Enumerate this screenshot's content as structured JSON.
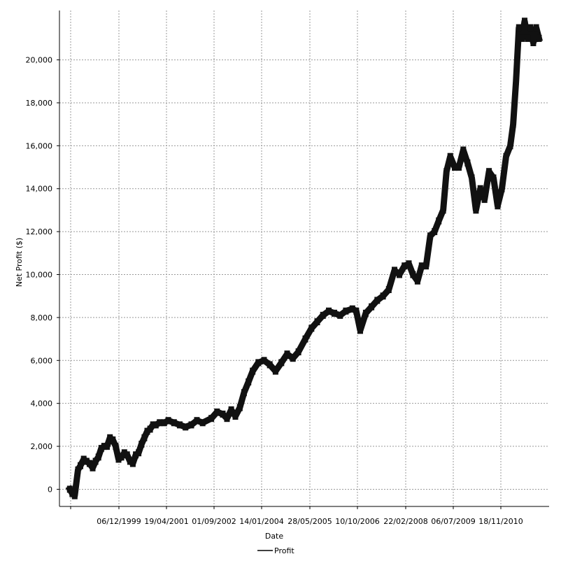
{
  "chart_data": {
    "type": "line",
    "title": "",
    "xlabel": "Date",
    "ylabel": "Net Profit ($)",
    "legend": {
      "placement": "bottom",
      "entries": [
        "Profit"
      ]
    },
    "grid": true,
    "x_tick_labels": [
      "06/12/1999",
      "19/04/2001",
      "01/09/2002",
      "14/01/2004",
      "28/05/2005",
      "10/10/2006",
      "22/02/2008",
      "06/07/2009",
      "18/11/2010"
    ],
    "y_tick_labels": [
      "0",
      "2,000",
      "4,000",
      "6,000",
      "8,000",
      "10,000",
      "12,000",
      "14,000",
      "16,000",
      "18,000",
      "20,000"
    ],
    "y_ticks": [
      0,
      2000,
      4000,
      6000,
      8000,
      10000,
      12000,
      14000,
      16000,
      18000,
      20000
    ],
    "ylim": [
      -800,
      22300
    ],
    "series": [
      {
        "name": "Profit",
        "x": [
          "1998-07-20",
          "1998-08-15",
          "1998-09-10",
          "1998-10-15",
          "1998-11-10",
          "1998-12-15",
          "1999-01-15",
          "1999-02-15",
          "1999-03-20",
          "1999-04-20",
          "1999-05-20",
          "1999-06-20",
          "1999-07-20",
          "1999-08-20",
          "1999-09-20",
          "1999-10-20",
          "1999-11-20",
          "1999-12-20",
          "2000-01-20",
          "2000-02-20",
          "2000-03-20",
          "2000-04-20",
          "2000-05-20",
          "2000-06-20",
          "2000-07-20",
          "2000-08-20",
          "2000-09-20",
          "2000-10-20",
          "2000-11-20",
          "2000-12-20",
          "2001-01-20",
          "2001-03-01",
          "2001-04-19",
          "2001-06-01",
          "2001-08-01",
          "2001-10-01",
          "2001-12-01",
          "2002-02-01",
          "2002-04-01",
          "2002-06-01",
          "2002-09-01",
          "2002-11-01",
          "2003-01-01",
          "2003-02-15",
          "2003-04-01",
          "2003-05-15",
          "2003-07-01",
          "2003-08-15",
          "2003-10-01",
          "2003-11-15",
          "2004-01-14",
          "2004-03-15",
          "2004-05-15",
          "2004-07-15",
          "2004-09-15",
          "2004-11-15",
          "2005-01-15",
          "2005-03-15",
          "2005-05-28",
          "2005-08-01",
          "2005-10-01",
          "2005-12-01",
          "2006-02-01",
          "2006-04-01",
          "2006-06-01",
          "2006-08-01",
          "2006-10-10",
          "2006-11-20",
          "2007-01-01",
          "2007-03-01",
          "2007-05-01",
          "2007-07-01",
          "2007-09-01",
          "2007-11-01",
          "2008-01-01",
          "2008-02-22",
          "2008-04-15",
          "2008-06-01",
          "2008-07-15",
          "2008-09-01",
          "2008-10-15",
          "2008-12-01",
          "2009-01-15",
          "2009-03-01",
          "2009-04-15",
          "2009-06-01",
          "2009-07-06",
          "2009-08-15",
          "2009-10-01",
          "2009-11-15",
          "2010-01-01",
          "2010-02-15",
          "2010-04-01",
          "2010-05-15",
          "2010-07-01",
          "2010-08-15",
          "2010-10-01",
          "2010-11-18",
          "2011-01-01",
          "2011-02-15",
          "2011-04-01",
          "2011-05-15",
          "2011-06-15",
          "2011-07-15",
          "2011-08-15",
          "2011-09-15",
          "2011-10-15",
          "2011-11-15",
          "2011-12-15",
          "2012-01-15",
          "2012-02-15",
          "2012-03-15"
        ],
        "values": [
          0,
          -200,
          -300,
          900,
          1100,
          1400,
          1300,
          1200,
          1000,
          1300,
          1500,
          1900,
          2000,
          2000,
          2400,
          2300,
          2000,
          1400,
          1500,
          1700,
          1600,
          1300,
          1200,
          1600,
          1700,
          2100,
          2400,
          2700,
          2800,
          3000,
          3000,
          3100,
          3100,
          3200,
          3100,
          3000,
          2900,
          3000,
          3200,
          3100,
          3300,
          3600,
          3500,
          3300,
          3700,
          3400,
          3800,
          4500,
          5000,
          5500,
          5900,
          6000,
          5800,
          5500,
          5900,
          6300,
          6100,
          6400,
          7000,
          7500,
          7800,
          8100,
          8300,
          8200,
          8100,
          8300,
          8400,
          8300,
          7400,
          8200,
          8500,
          8800,
          9000,
          9300,
          10200,
          10000,
          10400,
          10500,
          10000,
          9700,
          10400,
          10400,
          11800,
          12000,
          12500,
          13000,
          14800,
          15500,
          15000,
          15000,
          15800,
          15200,
          14500,
          13000,
          14000,
          13500,
          14800,
          14500,
          13200,
          14000,
          15500,
          16000,
          17000,
          19000,
          21500,
          21000,
          21800,
          21000,
          21500,
          20800,
          21500,
          21000
        ]
      }
    ]
  }
}
